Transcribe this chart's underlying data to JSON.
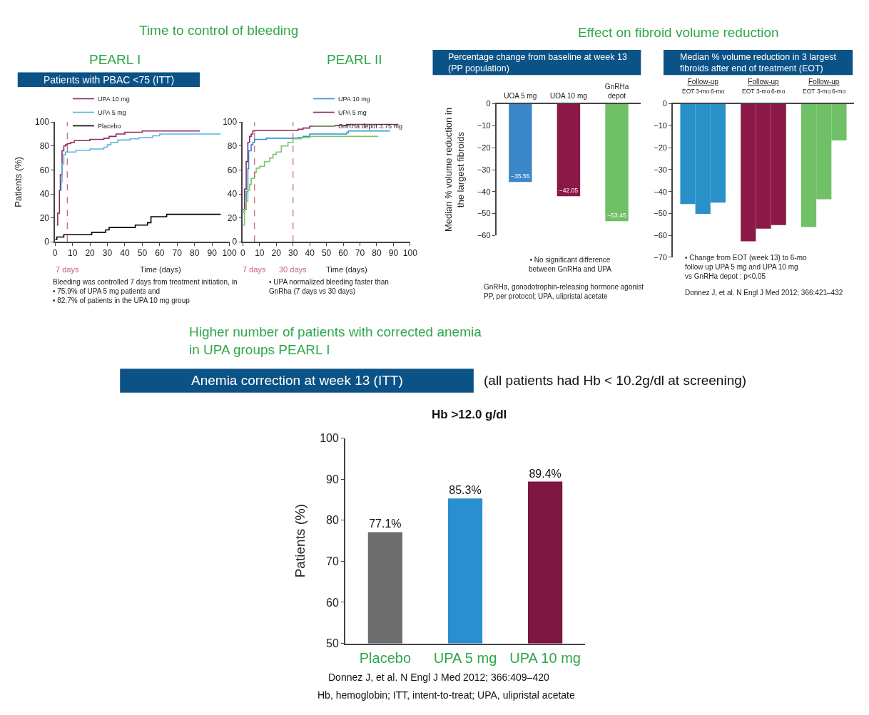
{
  "chart_data": [
    {
      "type": "step",
      "title": "PEARL I",
      "subtitle": "Patients with PBAC <75 (ITT)",
      "xlabel": "Time (days)",
      "ylabel": "Patients (%)",
      "xlim": [
        0,
        100
      ],
      "ylim": [
        0,
        100
      ],
      "xticks": [
        0,
        10,
        20,
        30,
        40,
        50,
        60,
        70,
        80,
        90,
        100
      ],
      "yticks": [
        0,
        20,
        40,
        60,
        80,
        100
      ],
      "legend": "top left",
      "series": [
        {
          "name": "UPA 10 mg",
          "color": "#8b2a62",
          "x": [
            1,
            1.5,
            2.5,
            3,
            4,
            5,
            6,
            7,
            9,
            11,
            20,
            28,
            31,
            35,
            40,
            50,
            83
          ],
          "values": [
            14,
            24,
            43,
            56,
            76,
            80,
            81,
            82,
            83,
            84.5,
            85.5,
            86.5,
            88,
            90,
            91.5,
            92.5,
            92.5
          ]
        },
        {
          "name": "UPA 5 mg",
          "color": "#5ab4e0",
          "x": [
            3,
            3.5,
            4,
            5,
            6,
            12,
            20,
            28,
            30,
            32,
            36,
            43,
            48,
            56,
            60,
            95
          ],
          "values": [
            43,
            50,
            65,
            73,
            75,
            76.5,
            77.5,
            79,
            81,
            83,
            85,
            86,
            87,
            88.5,
            90,
            90
          ]
        },
        {
          "name": "Placebo",
          "color": "#000000",
          "x": [
            0,
            1,
            5,
            21,
            29,
            31,
            46,
            53,
            55,
            64,
            95
          ],
          "values": [
            2,
            4,
            6,
            8,
            10,
            12,
            14,
            16,
            21,
            23,
            23
          ]
        }
      ],
      "ref_lines": [
        {
          "axis": "x",
          "value": 7,
          "label": "7 days",
          "color": "#c0607a",
          "line_style": "dashed"
        }
      ],
      "annotations": [
        "Time to control of bleeding",
        "Bleeding was controlled 7 days from treatment initiation, in\n• 75.9% of UPA 5 mg patients and\n• 82.7% of patients in the UPA 10 mg group"
      ]
    },
    {
      "type": "step",
      "title": "PEARL II",
      "xlabel": "Time (days)",
      "xlim": [
        0,
        100
      ],
      "ylim": [
        0,
        100
      ],
      "xticks": [
        0,
        10,
        20,
        30,
        40,
        50,
        60,
        70,
        80,
        90,
        100
      ],
      "yticks": [
        0,
        20,
        40,
        60,
        80,
        100
      ],
      "legend": "top right",
      "series": [
        {
          "name": "UPA 10 mg",
          "color": "#2f8fd8",
          "x": [
            0,
            1,
            2,
            3,
            3.5,
            5,
            6,
            7,
            14,
            33,
            36,
            40,
            62,
            63,
            88
          ],
          "values": [
            25,
            27,
            42,
            61,
            76,
            81,
            83,
            85.5,
            86.5,
            87,
            88,
            90,
            91,
            92.5,
            92.5
          ]
        },
        {
          "name": "UPA 5 mg",
          "color": "#8b2a62",
          "x": [
            0,
            1,
            2,
            3,
            4,
            5,
            6,
            7,
            33,
            36,
            40,
            55,
            62,
            93
          ],
          "values": [
            27,
            44,
            67,
            83,
            88,
            90,
            92.5,
            93,
            94,
            95,
            96.5,
            97,
            98,
            98
          ]
        },
        {
          "name": "GnRHa depot 3.75 mg",
          "color": "#7dc86a",
          "x": [
            0,
            1,
            2,
            3,
            4,
            5,
            7,
            8,
            10,
            13,
            16,
            18,
            20,
            23,
            27,
            30,
            35,
            40,
            81
          ],
          "values": [
            14,
            27,
            34,
            43,
            48,
            53,
            58,
            61.5,
            63,
            67,
            70,
            73,
            75,
            80,
            83,
            86,
            87,
            88,
            88
          ]
        }
      ],
      "ref_lines": [
        {
          "axis": "x",
          "value": 7,
          "label": "7 days",
          "color": "#c0607a",
          "line_style": "dashed"
        },
        {
          "axis": "x",
          "value": 30,
          "label": "30 days",
          "color": "#c0607a",
          "line_style": "dashed"
        }
      ],
      "annotations": [
        "• UPA normalized bleeding faster than\nGnRha (7 days vs 30 days)"
      ]
    },
    {
      "type": "bar",
      "title": "Percentage change from baseline at week 13\n(PP population)",
      "ylabel": "Median % volume reduction in\nthe largest fibroids",
      "categories": [
        "UOA 5 mg",
        "UOA 10 mg",
        "GnRHa\ndepot"
      ],
      "values": [
        -35.55,
        -42.05,
        -53.45
      ],
      "colors": [
        "#3a87c8",
        "#8b1846",
        "#6fc066"
      ],
      "value_labels": [
        "−35.55",
        "−42.05",
        "−53.45"
      ],
      "ylim": [
        -60,
        0
      ],
      "yticks": [
        0,
        -10,
        -20,
        -30,
        -40,
        -50,
        -60
      ],
      "annotations": [
        "Effect on fibroid volume reduction",
        "• No significant difference\nbetween GnRHa and UPA",
        "GnRHa, gonadotrophin-releasing hormone agonist\nPP, per protocol; UPA, ulipristal acetate"
      ]
    },
    {
      "type": "bar",
      "title": "Median % volume reduction in 3 largest\nfibroids after end of treatment (EOT)",
      "categories": [
        "Follow-up",
        "Follow-up",
        "Follow-up"
      ],
      "ylim": [
        -70,
        0
      ],
      "yticks": [
        0,
        -10,
        -20,
        -30,
        -40,
        -50,
        -60,
        -70
      ],
      "series": [
        {
          "name": "EOT",
          "colors": [
            "#2a90c8",
            "#8b1846",
            "#6fc066"
          ],
          "values": [
            -45.7,
            -62.7,
            -56.2
          ]
        },
        {
          "name": "3-mo",
          "colors": [
            "#2a90c8",
            "#8b1846",
            "#6fc066"
          ],
          "values": [
            -50.2,
            -56.9,
            -43.5
          ]
        },
        {
          "name": "6-mo",
          "colors": [
            "#2a90c8",
            "#8b1846",
            "#6fc066"
          ],
          "values": [
            -45.1,
            -55.3,
            -16.7
          ]
        }
      ],
      "annotations": [
        "• Change from EOT (week 13) to 6-mo\nfollow up UPA 5 mg and UPA 10 mg\nvs GnRHa depot : p<0.05",
        "Donnez J, et al. N Engl J Med 2012; 366:421–432"
      ]
    },
    {
      "type": "bar",
      "title": "Hb >12.0 g/dl",
      "subtitle": "Anemia correction at week 13 (ITT)",
      "ylabel": "Patients (%)",
      "categories": [
        "Placebo",
        "UPA 5 mg",
        "UPA 10 mg"
      ],
      "values": [
        77.1,
        85.3,
        89.4
      ],
      "colors": [
        "#6e6e6e",
        "#2a8fd0",
        "#7e1642"
      ],
      "value_labels": [
        "77.1%",
        "85.3%",
        "89.4%"
      ],
      "ylim": [
        50,
        100
      ],
      "yticks": [
        50,
        60,
        70,
        80,
        90,
        100
      ],
      "annotations": [
        "Higher number of patients with corrected anemia\nin UPA groups PEARL I",
        "(all patients had Hb < 10.2g/dl at screening)",
        "Donnez J, et al. N Engl J Med 2012; 366:409–420",
        "Hb, hemoglobin; ITT, intent-to-treat; UPA, ulipristal acetate"
      ]
    }
  ]
}
